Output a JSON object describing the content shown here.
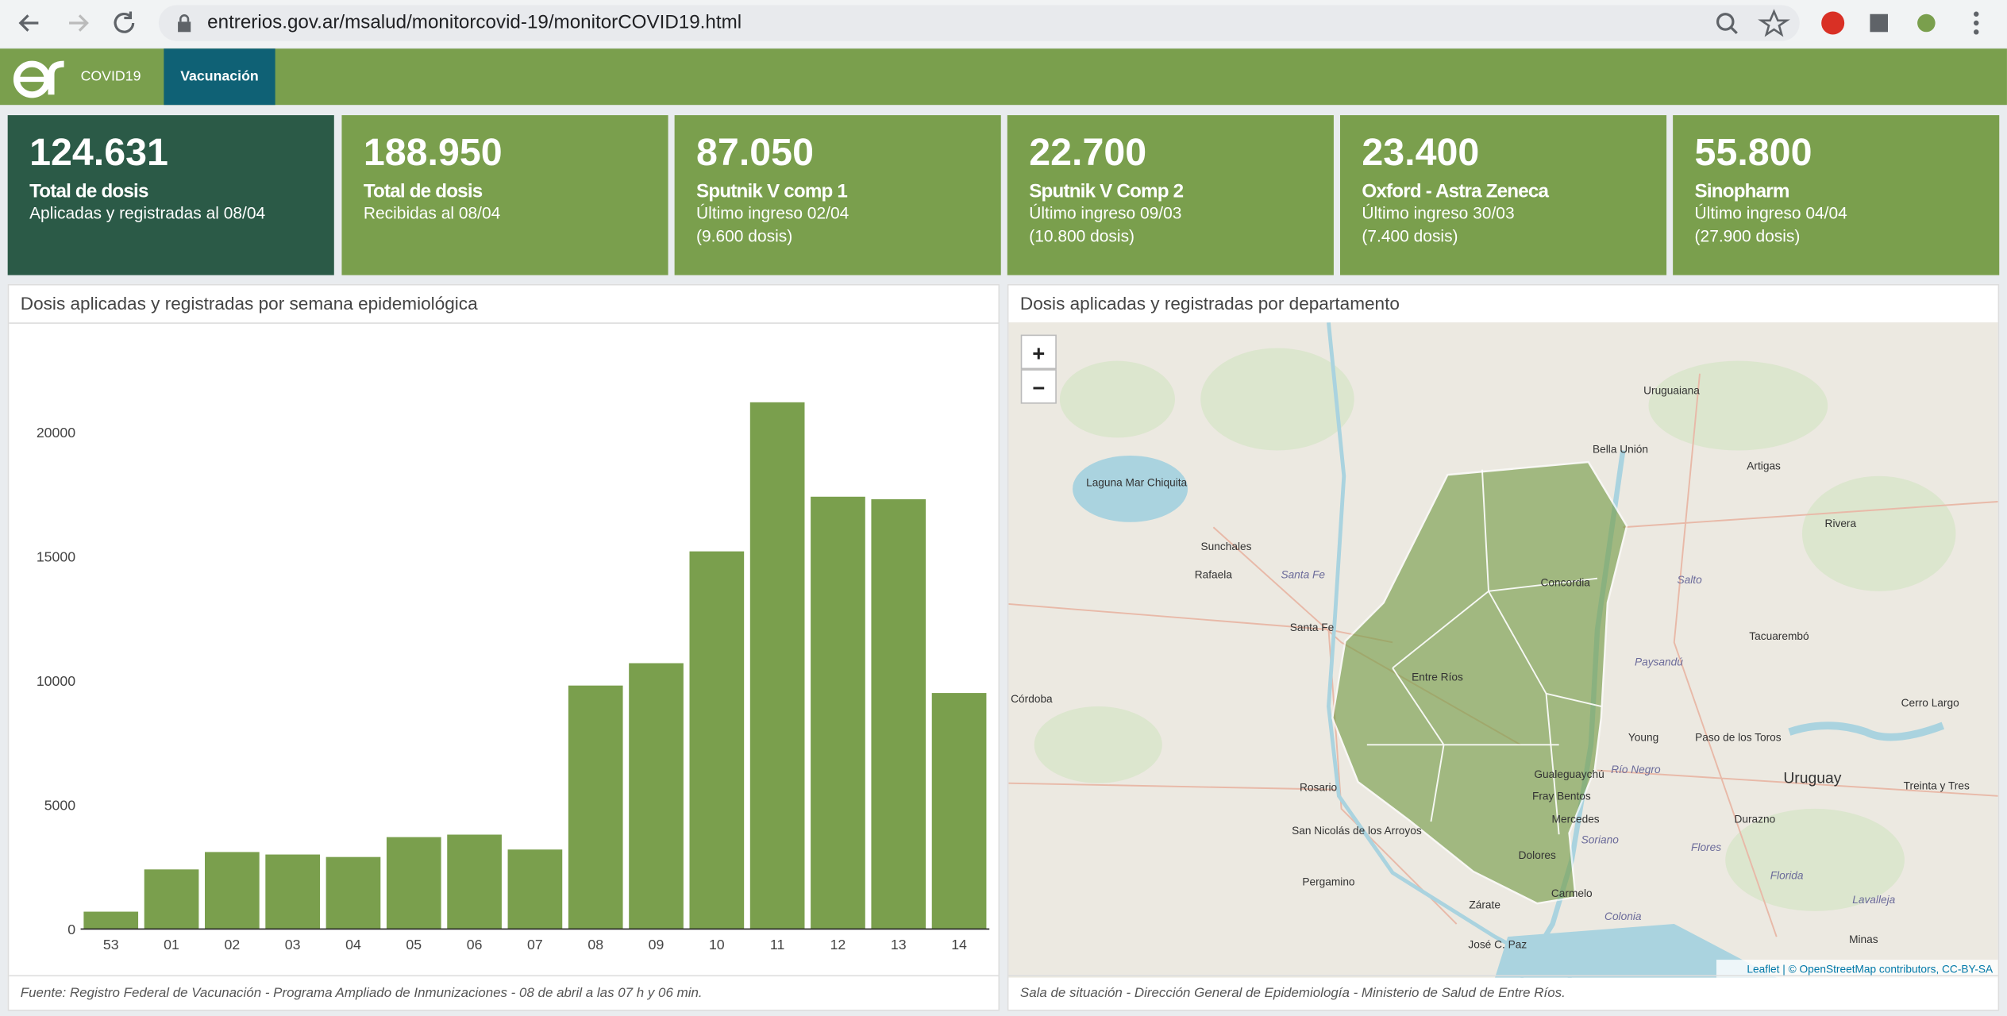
{
  "browser": {
    "url": "entrerios.gov.ar/msalud/monitorcovid-19/monitorCOVID19.html"
  },
  "nav": {
    "items": [
      "COVID19",
      "Vacunación"
    ]
  },
  "cards": [
    {
      "value": "124.631",
      "title": "Total de dosis",
      "lines": [
        "Aplicadas y registradas al 08/04"
      ]
    },
    {
      "value": "188.950",
      "title": "Total de dosis",
      "lines": [
        "Recibidas al 08/04"
      ]
    },
    {
      "value": "87.050",
      "title": "Sputnik V comp 1",
      "lines": [
        "Último ingreso 02/04",
        "(9.600 dosis)"
      ]
    },
    {
      "value": "22.700",
      "title": "Sputnik V Comp 2",
      "lines": [
        "Último ingreso 09/03",
        "(10.800 dosis)"
      ]
    },
    {
      "value": "23.400",
      "title": "Oxford - Astra Zeneca",
      "lines": [
        "Último ingreso 30/03",
        "(7.400 dosis)"
      ]
    },
    {
      "value": "55.800",
      "title": "Sinopharm",
      "lines": [
        "Último ingreso 04/04",
        "(27.900 dosis)"
      ]
    }
  ],
  "panels": [
    {
      "title": "Dosis aplicadas y registradas por semana epidemiológica",
      "footer": "Fuente: Registro Federal de Vacunación - Programa Ampliado de Inmunizaciones - 08 de abril a las 07 h y 06 min."
    },
    {
      "title": "Dosis aplicadas y registradas por departamento",
      "footer": "Sala de situación - Dirección General de Epidemiología - Ministerio de Salud de Entre Ríos."
    }
  ],
  "chart_data": {
    "type": "bar",
    "categories": [
      "53",
      "01",
      "02",
      "03",
      "04",
      "05",
      "06",
      "07",
      "08",
      "09",
      "10",
      "11",
      "12",
      "13",
      "14"
    ],
    "values": [
      700,
      2400,
      3100,
      3000,
      2900,
      3700,
      3800,
      3200,
      9800,
      10700,
      15200,
      21200,
      17400,
      17300,
      9500
    ],
    "color": "#7a9f4d",
    "ylim": [
      0,
      24000
    ],
    "yticks": [
      0,
      5000,
      10000,
      15000,
      20000
    ],
    "grid": false
  },
  "map": {
    "zoom": [
      "+",
      "−"
    ],
    "attribution": "Leaflet | © OpenStreetMap contributors, CC-BY-SA",
    "labels": [
      "Uruguaiana",
      "Bella Unión",
      "Artigas",
      "Laguna Mar Chiquita",
      "Sunchales",
      "Rafaela",
      "Santa Fe",
      "Concordia",
      "Rivera",
      "Salto",
      "Santa Fe",
      "Tacuarembó",
      "Entre Ríos",
      "Paysandú",
      "Córdoba",
      "Young",
      "Paso de los Toros",
      "Uruguay",
      "Rosario",
      "Gualeguaychú",
      "Río Negro",
      "Fray Bentos",
      "Mercedes",
      "Durazno",
      "San Nicolás de los Arroyos",
      "Soriano",
      "Flores",
      "Dolores",
      "Florida",
      "Pergamino",
      "Carmelo",
      "Zárate",
      "Colonia",
      "Lavalleja",
      "José C. Paz",
      "Minas",
      "Cerro Largo",
      "Treinta y Tres"
    ]
  }
}
